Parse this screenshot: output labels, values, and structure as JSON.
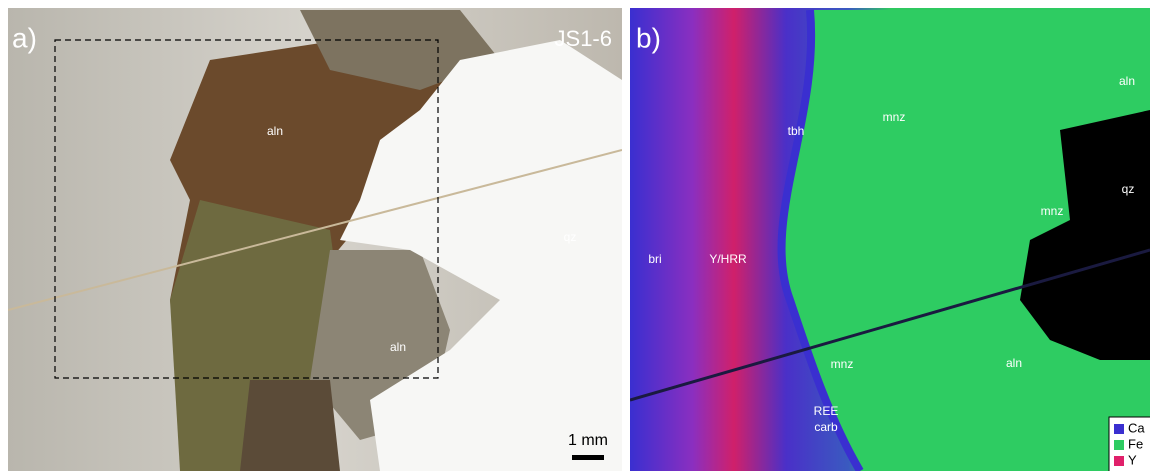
{
  "panels": [
    {
      "label": "a)",
      "title": "JS1-6",
      "annotations": [
        "aln",
        "qz",
        "aln"
      ],
      "scale_bar": "1 mm"
    },
    {
      "label": "b)",
      "annotations": [
        "tbh",
        "mnz",
        "aln",
        "mnz",
        "qz",
        "bri",
        "Y/HRR",
        "mnz",
        "aln",
        "REE",
        "carb"
      ],
      "legend": [
        "Ca",
        "Fe",
        "Y"
      ]
    }
  ]
}
